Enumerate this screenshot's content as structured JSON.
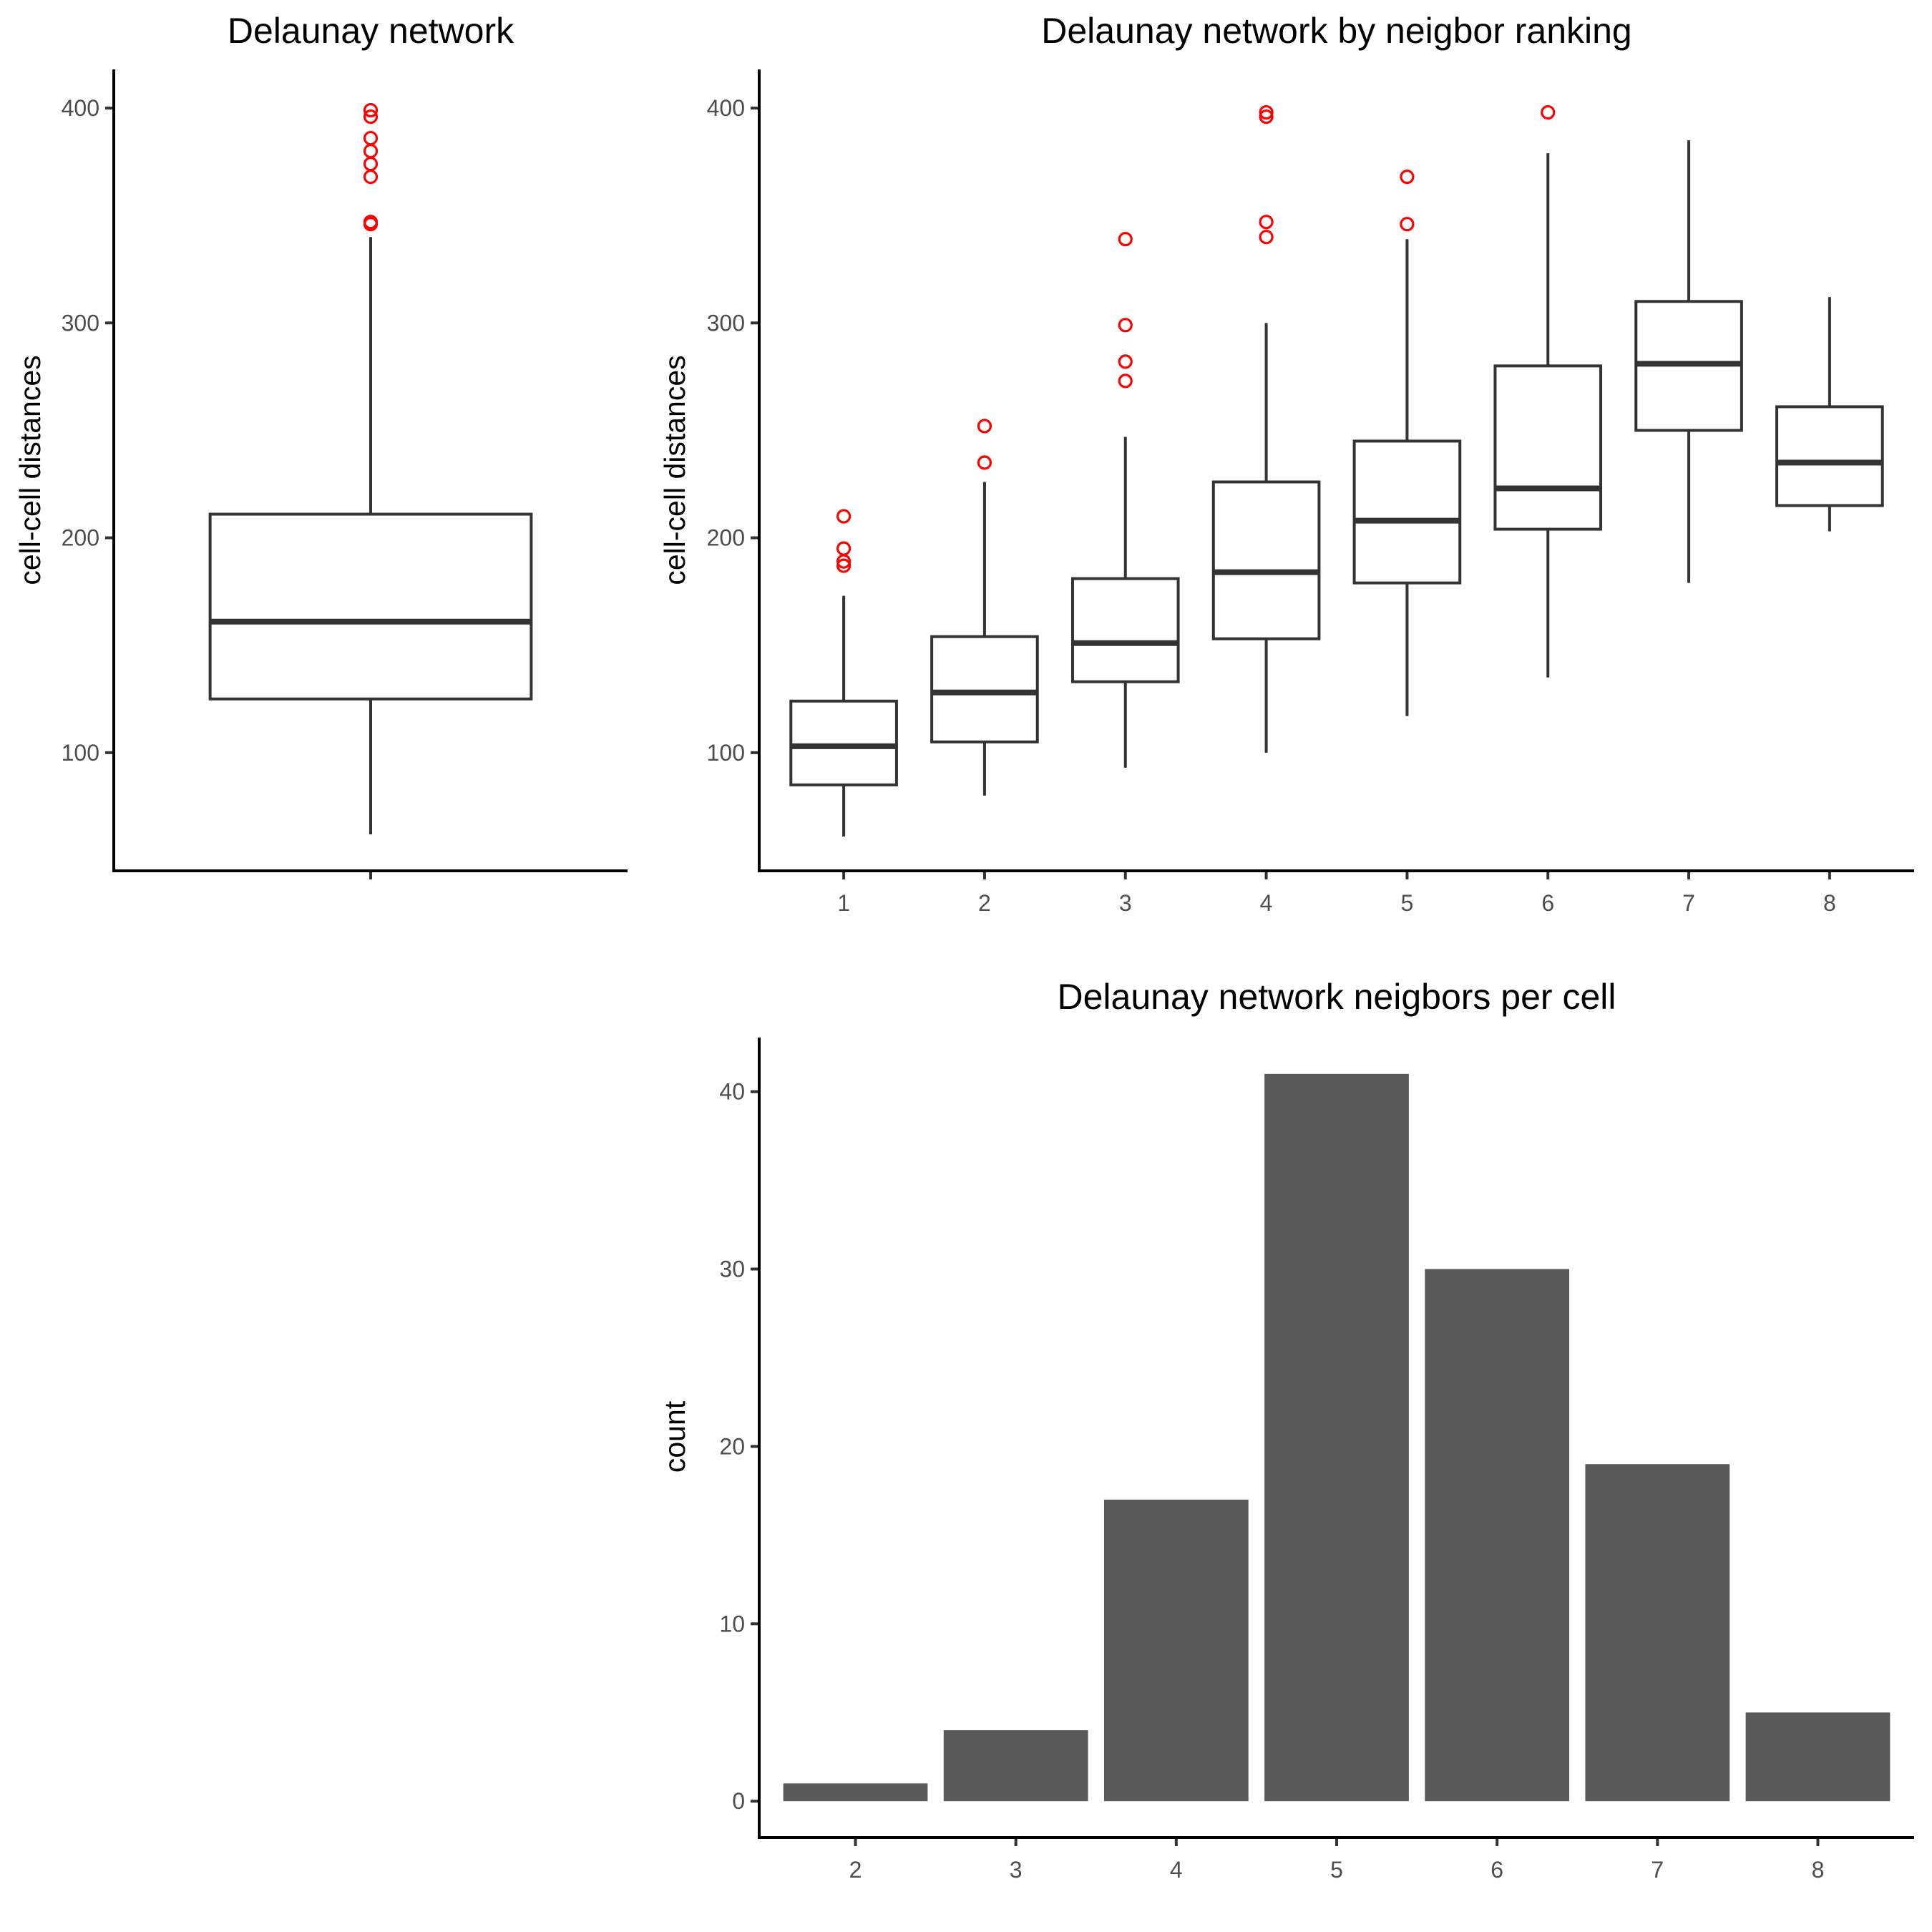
{
  "colors": {
    "outlier": "#ff0000",
    "box_stroke": "#333333",
    "bar_fill": "#595959",
    "tick_label": "#4d4d4d",
    "axis": "#000000"
  },
  "chart_data": [
    {
      "id": "overall",
      "type": "boxplot",
      "title": "Delaunay network",
      "xlabel": "",
      "ylabel": "cell-cell distances",
      "ylim": [
        45,
        418
      ],
      "yticks": [
        100,
        200,
        300,
        400
      ],
      "grid": false,
      "categories": [
        ""
      ],
      "boxes": [
        {
          "category": "",
          "whisker_low": 62,
          "q1": 125,
          "median": 161,
          "q3": 211,
          "whisker_high": 340,
          "outliers": [
            399,
            396,
            386,
            380,
            374,
            368,
            347,
            346
          ]
        }
      ]
    },
    {
      "id": "by-ranking",
      "type": "boxplot",
      "title": "Delaunay network by neigbor ranking",
      "xlabel": "",
      "ylabel": "cell-cell distances",
      "ylim": [
        45,
        418
      ],
      "yticks": [
        100,
        200,
        300,
        400
      ],
      "grid": false,
      "categories": [
        "1",
        "2",
        "3",
        "4",
        "5",
        "6",
        "7",
        "8"
      ],
      "boxes": [
        {
          "category": "1",
          "whisker_low": 61,
          "q1": 85,
          "median": 103,
          "q3": 124,
          "whisker_high": 173,
          "outliers": [
            210,
            195,
            189,
            187
          ]
        },
        {
          "category": "2",
          "whisker_low": 80,
          "q1": 105,
          "median": 128,
          "q3": 154,
          "whisker_high": 226,
          "outliers": [
            252,
            235
          ]
        },
        {
          "category": "3",
          "whisker_low": 93,
          "q1": 133,
          "median": 151,
          "q3": 181,
          "whisker_high": 247,
          "outliers": [
            339,
            299,
            282,
            273
          ]
        },
        {
          "category": "4",
          "whisker_low": 100,
          "q1": 153,
          "median": 184,
          "q3": 226,
          "whisker_high": 300,
          "outliers": [
            398,
            396,
            347,
            340
          ]
        },
        {
          "category": "5",
          "whisker_low": 117,
          "q1": 179,
          "median": 208,
          "q3": 245,
          "whisker_high": 339,
          "outliers": [
            368,
            346
          ]
        },
        {
          "category": "6",
          "whisker_low": 135,
          "q1": 204,
          "median": 223,
          "q3": 280,
          "whisker_high": 379,
          "outliers": [
            398
          ]
        },
        {
          "category": "7",
          "whisker_low": 179,
          "q1": 250,
          "median": 281,
          "q3": 310,
          "whisker_high": 385,
          "outliers": []
        },
        {
          "category": "8",
          "whisker_low": 203,
          "q1": 215,
          "median": 235,
          "q3": 261,
          "whisker_high": 312,
          "outliers": []
        }
      ]
    },
    {
      "id": "neighbors-per-cell",
      "type": "bar",
      "title": "Delaunay network neigbors per cell",
      "xlabel": "",
      "ylabel": "count",
      "ylim": [
        -2.05,
        43.05
      ],
      "yticks": [
        0,
        10,
        20,
        30,
        40
      ],
      "grid": false,
      "categories": [
        "2",
        "3",
        "4",
        "5",
        "6",
        "7",
        "8"
      ],
      "values": [
        1,
        4,
        17,
        41,
        30,
        19,
        5
      ]
    }
  ]
}
